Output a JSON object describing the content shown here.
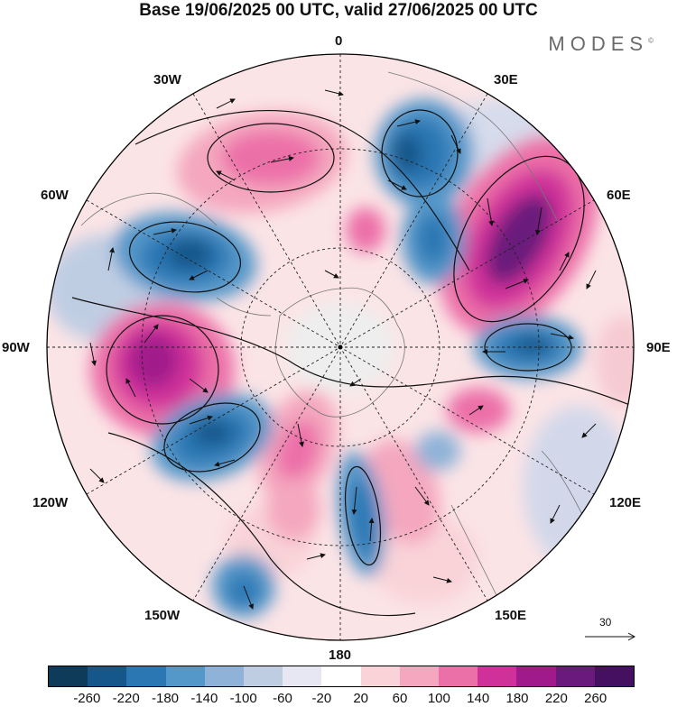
{
  "title": "Base 19/06/2025 00 UTC, valid 27/06/2025 00 UTC",
  "brand": "MODES",
  "brand_mark": "©",
  "longitude_labels": {
    "top": "0",
    "upper_left": "30W",
    "upper_right": "30E",
    "left_upper": "60W",
    "right_upper": "60E",
    "left": "90W",
    "right": "90E",
    "left_lower": "120W",
    "right_lower": "120E",
    "lower_left": "150W",
    "lower_right": "150E",
    "bottom": "180"
  },
  "reference_vector": "30",
  "colorbar": {
    "levels": [
      "-260",
      "-220",
      "-180",
      "-140",
      "-100",
      "-60",
      "-20",
      "20",
      "60",
      "100",
      "140",
      "180",
      "220",
      "260"
    ],
    "colors": [
      "#0e3b5a",
      "#15578a",
      "#2a77b4",
      "#5497c9",
      "#8fb3d8",
      "#bfcde3",
      "#e6e7f2",
      "#ffffff",
      "#f9d3d8",
      "#f4a7bf",
      "#ec70a8",
      "#d0309a",
      "#a11a8b",
      "#6a1a7c",
      "#45105f"
    ]
  }
}
